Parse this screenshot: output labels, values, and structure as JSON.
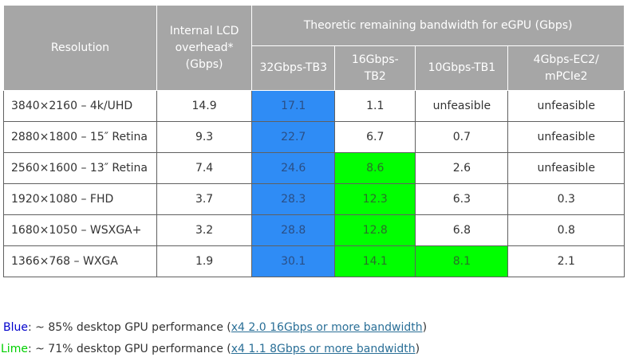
{
  "table": {
    "headers": {
      "resolution": "Resolution",
      "overhead": [
        "Internal LCD",
        "overhead*",
        "(Gbps)"
      ],
      "remaining_group": "Theoretic remaining bandwidth for eGPU (Gbps)",
      "tb3": "32Gbps-TB3",
      "tb2": [
        "16Gbps-",
        "TB2"
      ],
      "tb1": "10Gbps-TB1",
      "ec2": [
        "4Gbps-EC2/",
        "mPCIe2"
      ]
    },
    "rows": [
      {
        "resolution": "3840×2160 – 4k/UHD",
        "overhead": "14.9",
        "tb3": "17.1",
        "tb2": "1.1",
        "tb1": "unfeasible",
        "ec2": "unfeasible"
      },
      {
        "resolution": "2880×1800 – 15″ Retina",
        "overhead": "9.3",
        "tb3": "22.7",
        "tb2": "6.7",
        "tb1": "0.7",
        "ec2": "unfeasible"
      },
      {
        "resolution": "2560×1600 – 13″ Retina",
        "overhead": "7.4",
        "tb3": "24.6",
        "tb2": "8.6",
        "tb1": "2.6",
        "ec2": "unfeasible"
      },
      {
        "resolution": "1920×1080 – FHD",
        "overhead": "3.7",
        "tb3": "28.3",
        "tb2": "12.3",
        "tb1": "6.3",
        "ec2": "0.3"
      },
      {
        "resolution": "1680×1050 – WSXGA+",
        "overhead": "3.2",
        "tb3": "28.8",
        "tb2": "12.8",
        "tb1": "6.8",
        "ec2": "0.8"
      },
      {
        "resolution": "1366×768 – WXGA",
        "overhead": "1.9",
        "tb3": "30.1",
        "tb2": "14.1",
        "tb1": "8.1",
        "ec2": "2.1"
      }
    ]
  },
  "legend": {
    "blue": {
      "key": "Blue",
      "text": ": ~ 85% desktop GPU performance (",
      "link": "x4 2.0 16Gbps or more bandwidth",
      "close": ")"
    },
    "lime": {
      "key": "Lime",
      "text": ": ~ 71% desktop GPU performance (",
      "link": "x4 1.1 8Gbps or more bandwidth",
      "close": ")"
    }
  },
  "colors": {
    "header_bg": "#a6a6a6",
    "blue": "#2f8cf5",
    "lime": "#00ff00",
    "link": "#2a6f97"
  }
}
